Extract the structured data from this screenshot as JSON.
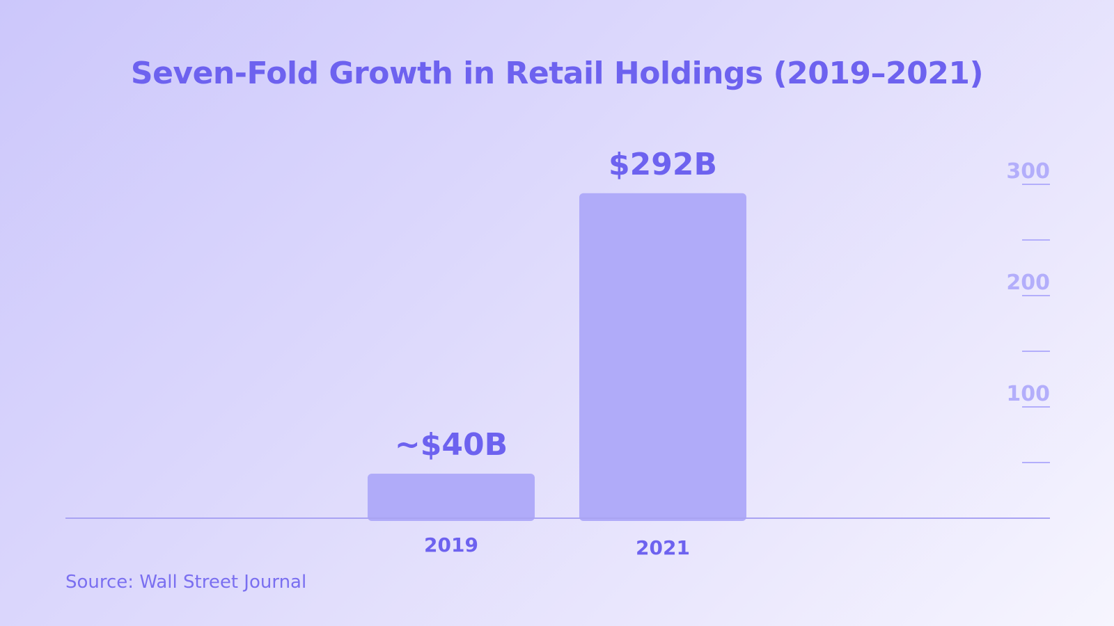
{
  "colors": {
    "accent": "#6d62ef",
    "bar": "#b0abf9",
    "tick": "#b3aefb",
    "baseline": "#a9a3f2"
  },
  "chart_data": {
    "type": "bar",
    "title": "Seven-Fold Growth in Retail Holdings (2019–2021)",
    "categories": [
      "2019",
      "2021"
    ],
    "values": [
      40,
      292
    ],
    "value_labels": [
      "~$40B",
      "$292B"
    ],
    "ylabel": "",
    "xlabel": "",
    "ylim": [
      0,
      300
    ],
    "y_axis_position": "right",
    "y_ticks": [
      0,
      50,
      100,
      150,
      200,
      250,
      300
    ],
    "y_tick_labels": [
      "100",
      "200",
      "300"
    ],
    "y_tick_label_values": [
      100,
      200,
      300
    ],
    "units": "billions USD",
    "grid": false
  },
  "source": "Source: Wall Street Journal"
}
